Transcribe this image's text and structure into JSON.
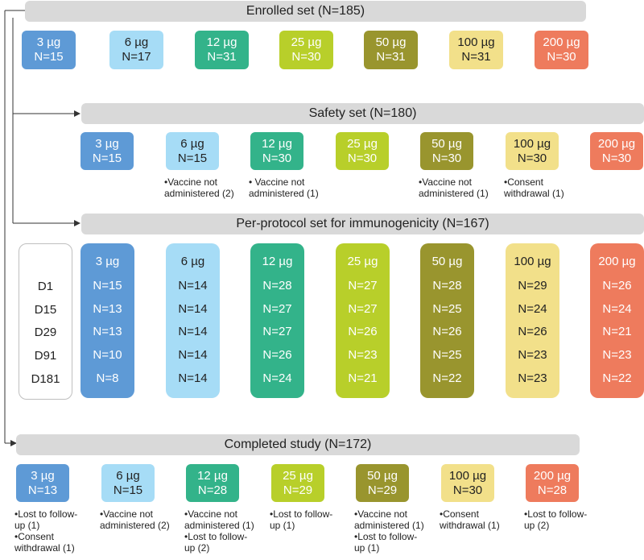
{
  "colors": {
    "3": "#5e9ad6",
    "6": "#a6dcf6",
    "12": "#33b38a",
    "25": "#b8cf2a",
    "50": "#99952e",
    "100": "#f2e08a",
    "200": "#ee7b5d",
    "banner": "#d9d9d9",
    "line": "#333333"
  },
  "enrolled": {
    "title": "Enrolled set (N=185)",
    "groups": [
      {
        "dose": "3 µg",
        "n": "N=15"
      },
      {
        "dose": "6 µg",
        "n": "N=17"
      },
      {
        "dose": "12 µg",
        "n": "N=31"
      },
      {
        "dose": "25 µg",
        "n": "N=30"
      },
      {
        "dose": "50 µg",
        "n": "N=31"
      },
      {
        "dose": "100 µg",
        "n": "N=31"
      },
      {
        "dose": "200 µg",
        "n": "N=30"
      }
    ]
  },
  "safety": {
    "title": "Safety set (N=180)",
    "groups": [
      {
        "dose": "3 µg",
        "n": "N=15",
        "notes": []
      },
      {
        "dose": "6 µg",
        "n": "N=15",
        "notes": [
          "•Vaccine not",
          "administered (2)"
        ]
      },
      {
        "dose": "12 µg",
        "n": "N=30",
        "notes": [
          "• Vaccine not",
          "administered (1)"
        ]
      },
      {
        "dose": "25 µg",
        "n": "N=30",
        "notes": []
      },
      {
        "dose": "50 µg",
        "n": "N=30",
        "notes": [
          "•Vaccine not",
          "administered (1)"
        ]
      },
      {
        "dose": "100 µg",
        "n": "N=30",
        "notes": [
          "•Consent",
          "withdrawal (1)"
        ]
      },
      {
        "dose": "200 µg",
        "n": "N=30",
        "notes": []
      }
    ]
  },
  "perprotocol": {
    "title": "Per-protocol set for immunogenicity (N=167)",
    "days": [
      "D1",
      "D15",
      "D29",
      "D91",
      "D181"
    ],
    "groups": [
      {
        "dose": "3 µg",
        "values": [
          "N=15",
          "N=13",
          "N=13",
          "N=10",
          "N=8"
        ]
      },
      {
        "dose": "6 µg",
        "values": [
          "N=14",
          "N=14",
          "N=14",
          "N=14",
          "N=14"
        ]
      },
      {
        "dose": "12 µg",
        "values": [
          "N=28",
          "N=27",
          "N=27",
          "N=26",
          "N=24"
        ]
      },
      {
        "dose": "25 µg",
        "values": [
          "N=27",
          "N=27",
          "N=26",
          "N=23",
          "N=21"
        ]
      },
      {
        "dose": "50 µg",
        "values": [
          "N=28",
          "N=25",
          "N=26",
          "N=25",
          "N=22"
        ]
      },
      {
        "dose": "100 µg",
        "values": [
          "N=29",
          "N=24",
          "N=26",
          "N=23",
          "N=23"
        ]
      },
      {
        "dose": "200 µg",
        "values": [
          "N=26",
          "N=24",
          "N=21",
          "N=23",
          "N=22"
        ]
      }
    ]
  },
  "completed": {
    "title": "Completed study (N=172)",
    "groups": [
      {
        "dose": "3 µg",
        "n": "N=13",
        "notes": [
          "•Lost to follow-",
          "up (1)",
          "•Consent",
          "withdrawal (1)"
        ]
      },
      {
        "dose": "6 µg",
        "n": "N=15",
        "notes": [
          "•Vaccine not",
          "administered (2)"
        ]
      },
      {
        "dose": "12 µg",
        "n": "N=28",
        "notes": [
          "•Vaccine not",
          "administered (1)",
          "•Lost to follow-",
          "up (2)"
        ]
      },
      {
        "dose": "25 µg",
        "n": "N=29",
        "notes": [
          "•Lost to follow-",
          "up (1)"
        ]
      },
      {
        "dose": "50 µg",
        "n": "N=29",
        "notes": [
          "•Vaccine not",
          "administered (1)",
          "•Lost to follow-",
          "up (1)"
        ]
      },
      {
        "dose": "100 µg",
        "n": "N=30",
        "notes": [
          "•Consent",
          "withdrawal (1)"
        ]
      },
      {
        "dose": "200 µg",
        "n": "N=28",
        "notes": [
          "•Lost to follow-",
          "up (2)"
        ]
      }
    ]
  }
}
